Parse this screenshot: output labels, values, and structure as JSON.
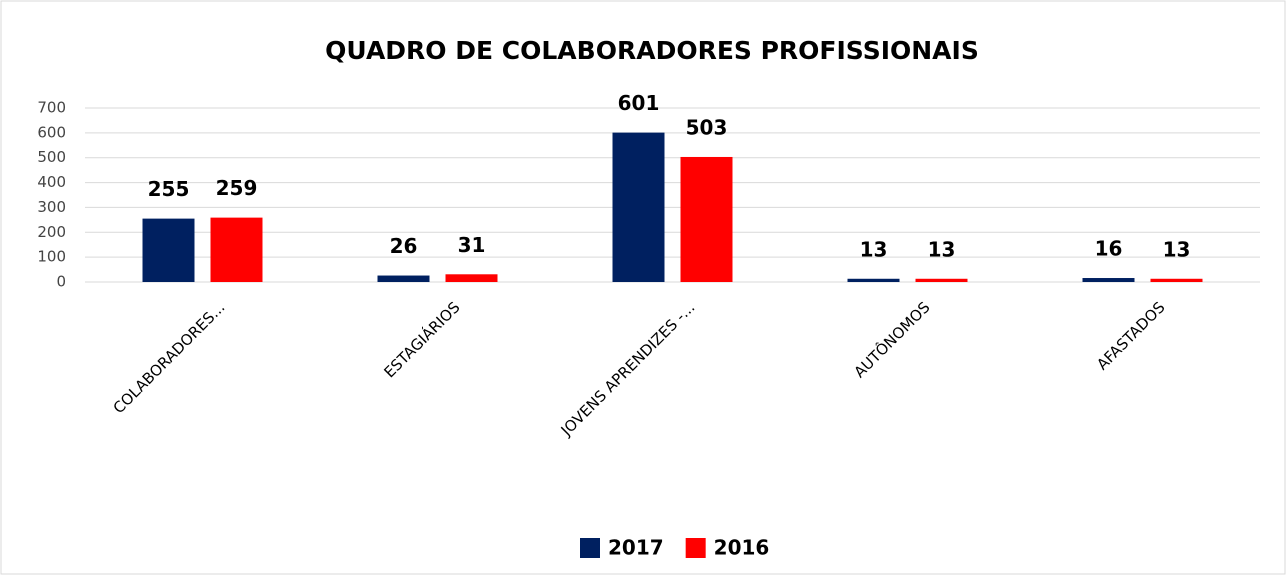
{
  "chart_data": {
    "type": "bar",
    "title": "QUADRO DE COLABORADORES PROFISSIONAIS",
    "categories": [
      "COLABORADORES...",
      "ESTAGIÁRIOS",
      "JOVENS APRENDIZES -...",
      "AUTÔNOMOS",
      "AFASTADOS"
    ],
    "series": [
      {
        "name": "2017",
        "color": "#002060",
        "values": [
          255,
          26,
          601,
          13,
          16
        ]
      },
      {
        "name": "2016",
        "color": "#ff0000",
        "values": [
          259,
          31,
          503,
          13,
          13
        ]
      }
    ],
    "ylim": [
      0,
      700
    ],
    "yticks": [
      0,
      100,
      200,
      300,
      400,
      500,
      600,
      700
    ],
    "grid": true,
    "legend": "bottom"
  }
}
